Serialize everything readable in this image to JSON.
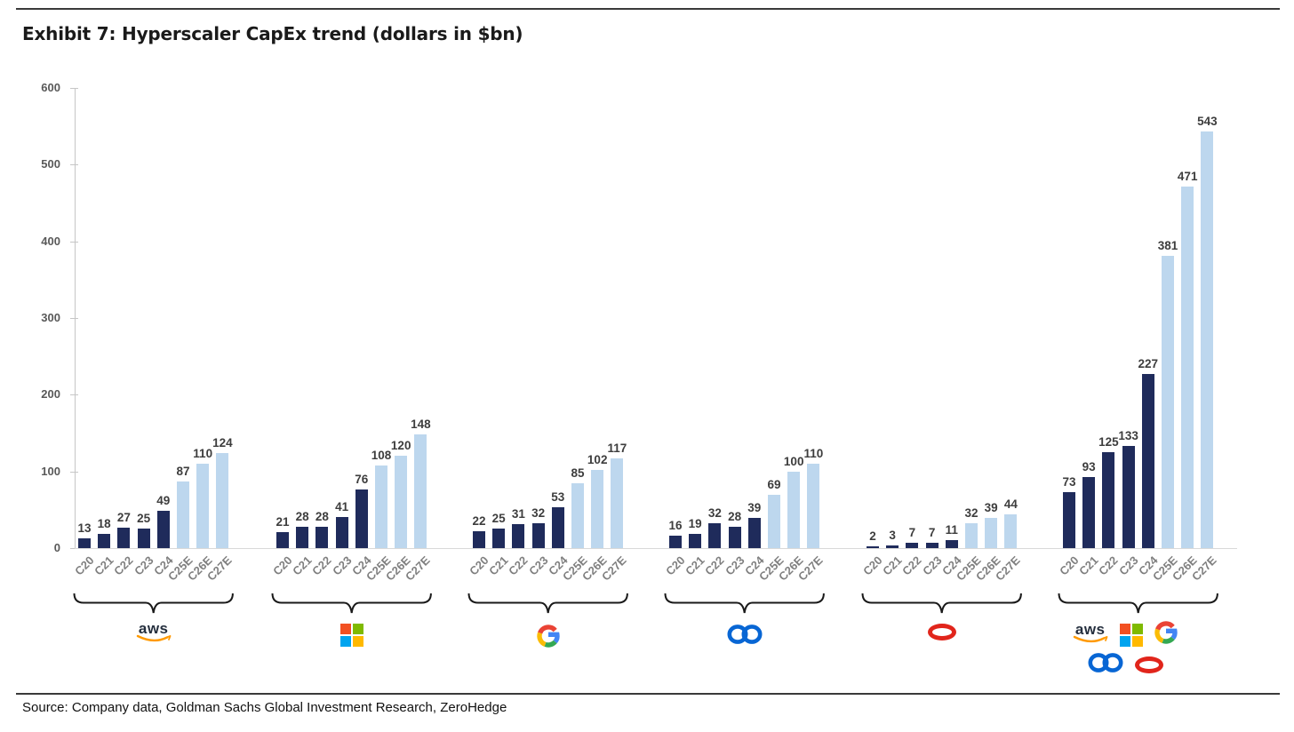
{
  "title": "Exhibit 7: Hyperscaler CapEx trend (dollars in $bn)",
  "source": "Source: Company data, Goldman Sachs Global Investment Research, ZeroHedge",
  "colors": {
    "actual_bar": "#1f2b5b",
    "estimate_bar": "#bdd7ee",
    "value_label": "#3d3d3d",
    "category_label": "#7f7f7f",
    "axis": "#c6c6c6",
    "brace": "#1a1a1a",
    "aws_orange": "#ff9900",
    "aws_dark": "#252f3e",
    "ms_red": "#f25022",
    "ms_green": "#7fba00",
    "ms_blue": "#00a4ef",
    "ms_yellow": "#ffb900",
    "google_blue": "#4285f4",
    "google_red": "#ea4335",
    "google_yellow": "#fbbc05",
    "google_green": "#34a853",
    "meta_blue": "#0866d4",
    "oracle_red": "#e1251b"
  },
  "chart_data": {
    "type": "bar",
    "title": "Exhibit 7: Hyperscaler CapEx trend (dollars in $bn)",
    "categories": [
      "C20",
      "C21",
      "C22",
      "C23",
      "C24",
      "C25E",
      "C26E",
      "C27E"
    ],
    "bar_style_by_category": [
      "actual",
      "actual",
      "actual",
      "actual",
      "actual",
      "estimate",
      "estimate",
      "estimate"
    ],
    "ylim": [
      0,
      600
    ],
    "yticks": [
      0,
      100,
      200,
      300,
      400,
      500,
      600
    ],
    "grid": false,
    "legend": "none",
    "series": [
      {
        "name": "AWS",
        "logo": "aws",
        "values": [
          13,
          18,
          27,
          25,
          49,
          87,
          110,
          124
        ]
      },
      {
        "name": "Microsoft",
        "logo": "microsoft",
        "values": [
          21,
          28,
          28,
          41,
          76,
          108,
          120,
          148
        ]
      },
      {
        "name": "Google",
        "logo": "google",
        "values": [
          22,
          25,
          31,
          32,
          53,
          85,
          102,
          117
        ]
      },
      {
        "name": "Meta",
        "logo": "meta",
        "values": [
          16,
          19,
          32,
          28,
          39,
          69,
          100,
          110
        ]
      },
      {
        "name": "Oracle",
        "logo": "oracle",
        "values": [
          2,
          3,
          7,
          7,
          11,
          32,
          39,
          44
        ]
      },
      {
        "name": "Combined hyperscalers",
        "logo": "all",
        "values": [
          73,
          93,
          125,
          133,
          227,
          381,
          471,
          543
        ]
      }
    ]
  }
}
